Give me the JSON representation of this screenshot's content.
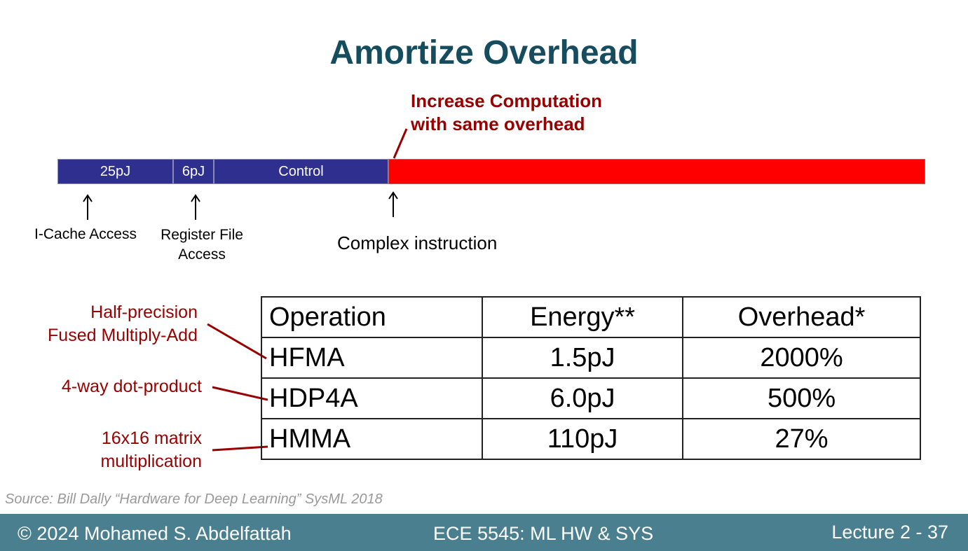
{
  "title": "Amortize Overhead",
  "callout": {
    "line1": "Increase Computation",
    "line2": "with same overhead"
  },
  "bar": {
    "seg1": "25pJ",
    "seg2": "6pJ",
    "seg3": "Control"
  },
  "labels": {
    "icache": "I-Cache Access",
    "regfile_line1": "Register File",
    "regfile_line2": "Access",
    "complex": "Complex instruction"
  },
  "side_labels": {
    "hfma_line1": "Half-precision",
    "hfma_line2": "Fused Multiply-Add",
    "hdp4a": "4-way dot-product",
    "hmma_line1": "16x16 matrix",
    "hmma_line2": "multiplication"
  },
  "table": {
    "headers": [
      "Operation",
      "Energy**",
      "Overhead*"
    ],
    "rows": [
      [
        "HFMA",
        "1.5pJ",
        "2000%"
      ],
      [
        "HDP4A",
        "6.0pJ",
        "500%"
      ],
      [
        "HMMA",
        "110pJ",
        "27%"
      ]
    ]
  },
  "source": "Source: Bill Dally “Hardware for Deep Learning” SysML 2018",
  "footer": {
    "copyright": "© 2024 Mohamed S. Abdelfattah",
    "course": "ECE 5545: ML HW & SYS",
    "lecture": "Lecture 2 - 37"
  },
  "colors": {
    "title": "#154d5e",
    "accent_red": "#990000",
    "bar_blue": "#2e2f8e",
    "bar_red": "#ff0000",
    "footer_bg": "#4a7f8f"
  }
}
